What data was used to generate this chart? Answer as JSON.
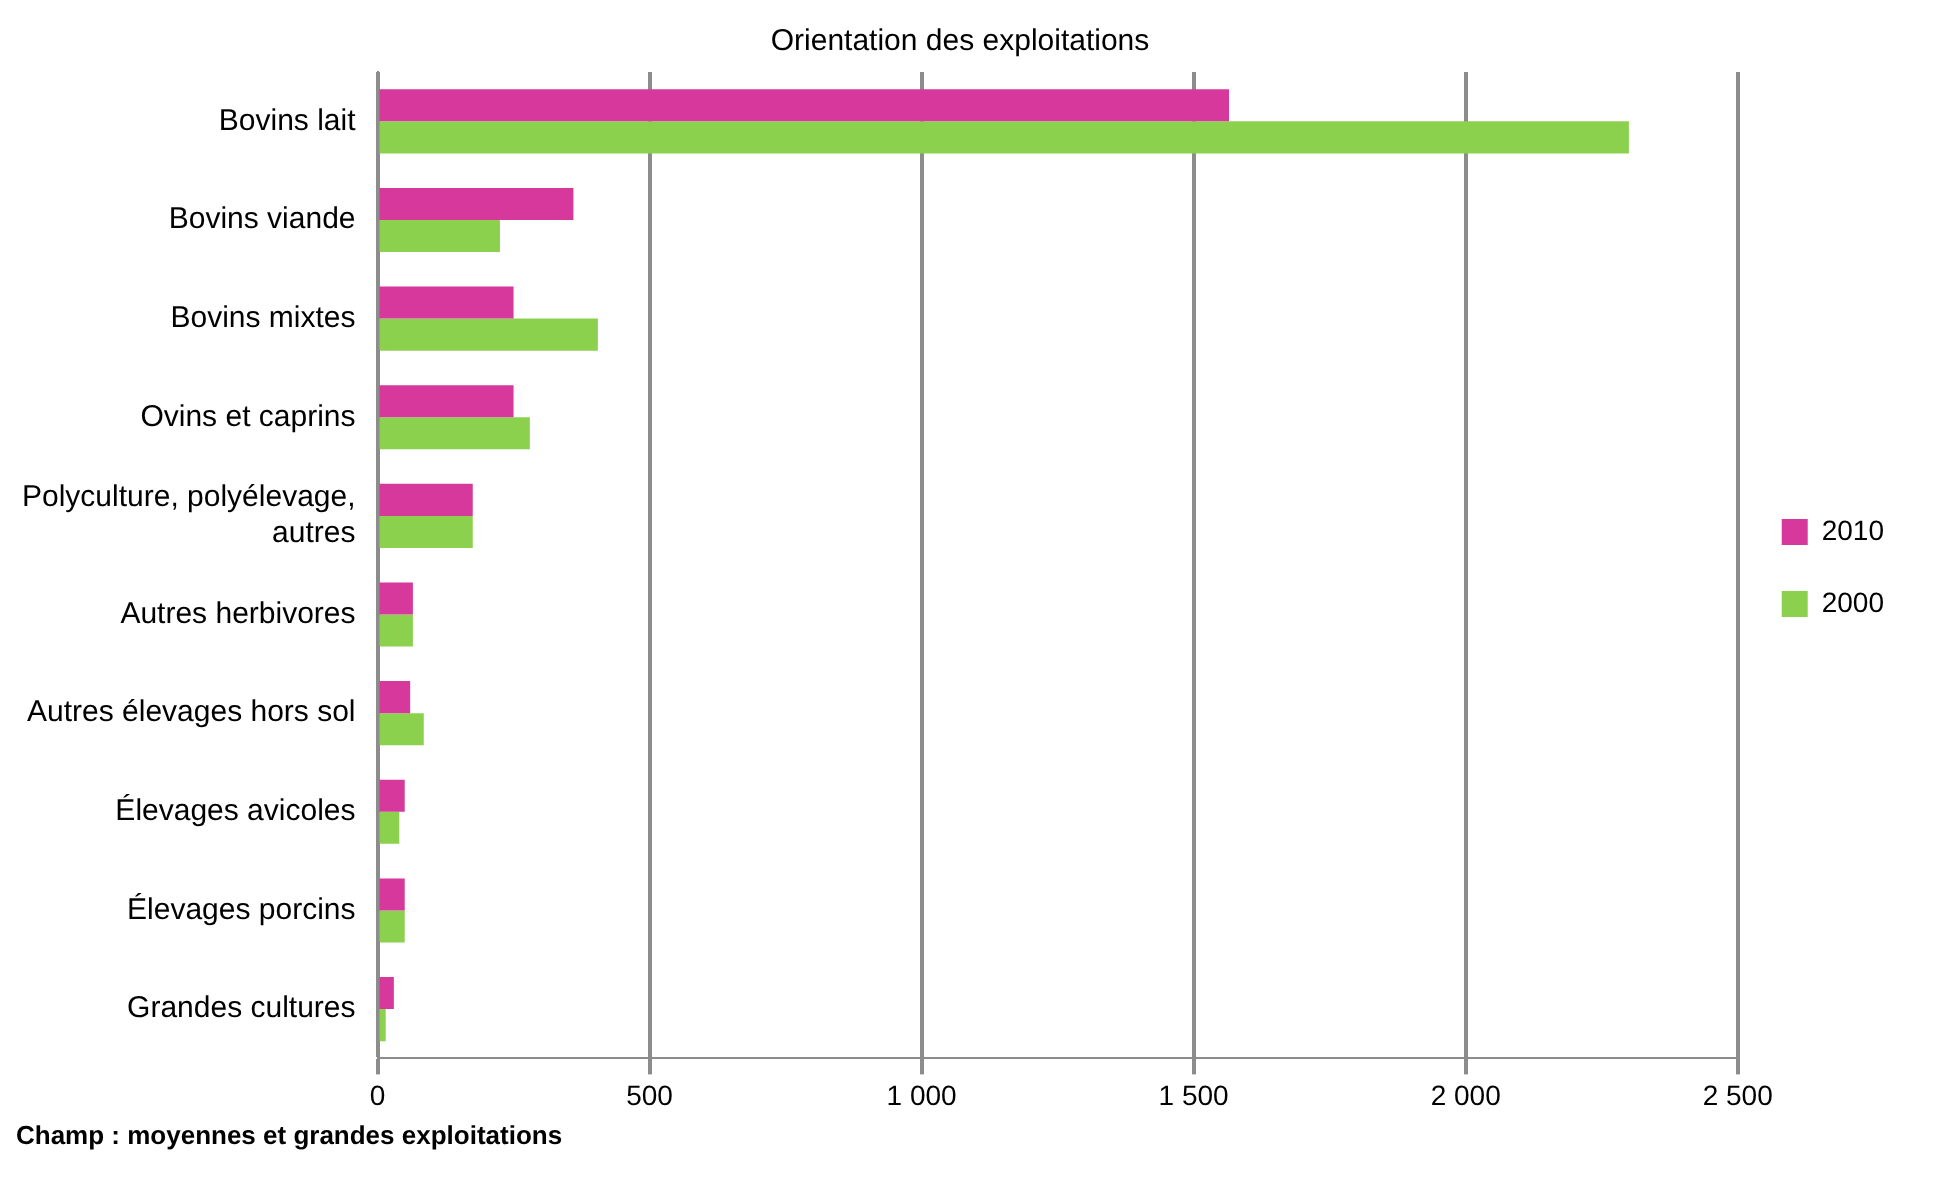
{
  "chart_data": {
    "type": "bar",
    "orientation": "horizontal",
    "title": "Orientation des exploitations",
    "categories": [
      "Bovins lait",
      "Bovins viande",
      "Bovins mixtes",
      "Ovins et caprins",
      "Polyculture, polyélevage, autres",
      "Autres herbivores",
      "Autres élevages hors sol",
      "Élevages avicoles",
      "Élevages porcins",
      "Grandes cultures"
    ],
    "series": [
      {
        "name": "2010",
        "color": "#d6389b",
        "values": [
          1565,
          360,
          250,
          250,
          175,
          65,
          60,
          50,
          50,
          30
        ]
      },
      {
        "name": "2000",
        "color": "#8cd14e",
        "values": [
          2300,
          225,
          405,
          280,
          175,
          65,
          85,
          40,
          50,
          15
        ]
      }
    ],
    "xlim": [
      0,
      2500
    ],
    "xticks": [
      0,
      500,
      {
        "value": 1000,
        "label": "1 000"
      },
      {
        "value": 1500,
        "label": "1 500"
      },
      {
        "value": 2000,
        "label": "2 000"
      },
      {
        "value": 2500,
        "label": "2 500"
      }
    ],
    "grid": "x",
    "legend": "right",
    "annotations": [
      "Champ : moyennes et grandes exploitations"
    ]
  }
}
